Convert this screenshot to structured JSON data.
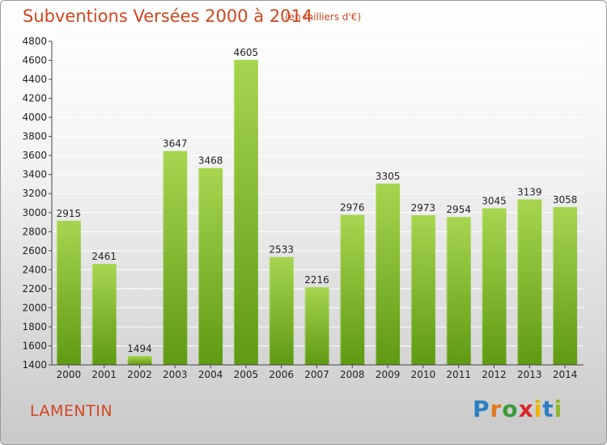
{
  "title": "Subventions Versées 2000 à 2014",
  "subtitle": "(en milliers d'€)",
  "commune": "LAMENTIN",
  "logo": {
    "text": "Proxiti",
    "letters": [
      "P",
      "r",
      "o",
      "x",
      "i",
      "t",
      "i"
    ]
  },
  "colors": {
    "title": "#d2451e",
    "bar_top": "#a6d64f",
    "bar_bottom": "#5f9a12",
    "grid": "#ffffff",
    "axis": "#444444"
  },
  "chart_data": {
    "type": "bar",
    "title": "Subventions Versées 2000 à 2014",
    "subtitle": "(en milliers d'€)",
    "categories": [
      "2000",
      "2001",
      "2002",
      "2003",
      "2004",
      "2005",
      "2006",
      "2007",
      "2008",
      "2009",
      "2010",
      "2011",
      "2012",
      "2013",
      "2014"
    ],
    "values": [
      2915,
      2461,
      1494,
      3647,
      3468,
      4605,
      2533,
      2216,
      2976,
      3305,
      2973,
      2954,
      3045,
      3139,
      3058
    ],
    "data_labels": [
      "2915",
      "2461",
      "1494",
      "3647",
      "3468",
      "4605",
      "2533",
      "2216",
      "2976",
      "3305",
      "2973",
      "2954",
      "3045",
      "3139",
      "3058"
    ],
    "ylim": [
      1400,
      4800
    ],
    "yticks": [
      1400,
      1600,
      1800,
      2000,
      2200,
      2400,
      2600,
      2800,
      3000,
      3200,
      3400,
      3600,
      3800,
      4000,
      4200,
      4400,
      4600,
      4800
    ],
    "ytick_labels": [
      "1400",
      "1600",
      "1800",
      "2000",
      "2200",
      "2400",
      "2600",
      "2800",
      "3000",
      "3200",
      "3400",
      "3600",
      "3800",
      "4000",
      "4200",
      "4400",
      "4600",
      "4800"
    ],
    "grid": true,
    "legend": "none"
  }
}
